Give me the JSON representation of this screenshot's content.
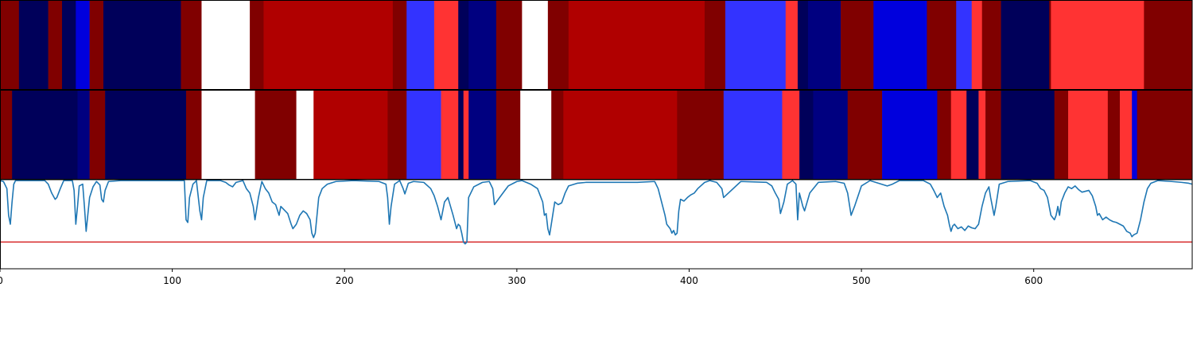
{
  "chart_data": [
    {
      "type": "heatmap",
      "xlim": [
        0,
        692
      ],
      "colors": {
        "N": "#800000",
        "D": "#b00000",
        "R": "#ff3333",
        "W": "#ffffff",
        "L": "#3333ff",
        "B": "#0000dd",
        "K": "#00005a",
        "M": "#000080"
      },
      "segments": [
        [
          0,
          11,
          "N"
        ],
        [
          11,
          28,
          "K"
        ],
        [
          28,
          36,
          "N"
        ],
        [
          36,
          44,
          "K"
        ],
        [
          44,
          52,
          "B"
        ],
        [
          52,
          60,
          "N"
        ],
        [
          60,
          105,
          "K"
        ],
        [
          105,
          117,
          "N"
        ],
        [
          117,
          145,
          "W"
        ],
        [
          145,
          153,
          "N"
        ],
        [
          153,
          228,
          "D"
        ],
        [
          228,
          236,
          "N"
        ],
        [
          236,
          252,
          "L"
        ],
        [
          252,
          266,
          "R"
        ],
        [
          266,
          272,
          "K"
        ],
        [
          272,
          288,
          "M"
        ],
        [
          288,
          303,
          "N"
        ],
        [
          303,
          318,
          "W"
        ],
        [
          318,
          330,
          "N"
        ],
        [
          330,
          409,
          "D"
        ],
        [
          409,
          421,
          "N"
        ],
        [
          421,
          456,
          "L"
        ],
        [
          456,
          463,
          "R"
        ],
        [
          463,
          469,
          "K"
        ],
        [
          469,
          488,
          "M"
        ],
        [
          488,
          507,
          "N"
        ],
        [
          507,
          538,
          "B"
        ],
        [
          538,
          555,
          "N"
        ],
        [
          555,
          564,
          "L"
        ],
        [
          564,
          570,
          "R"
        ],
        [
          570,
          581,
          "N"
        ],
        [
          581,
          609,
          "K"
        ],
        [
          609,
          610,
          "N"
        ],
        [
          610,
          664,
          "R"
        ],
        [
          664,
          692,
          "N"
        ]
      ]
    },
    {
      "type": "heatmap",
      "xlim": [
        0,
        692
      ],
      "colors": {
        "N": "#800000",
        "D": "#b00000",
        "R": "#ff3333",
        "W": "#ffffff",
        "L": "#3333ff",
        "B": "#0000dd",
        "K": "#00005a",
        "M": "#000080"
      },
      "segments": [
        [
          0,
          7,
          "N"
        ],
        [
          7,
          45,
          "K"
        ],
        [
          45,
          52,
          "M"
        ],
        [
          52,
          61,
          "N"
        ],
        [
          61,
          108,
          "K"
        ],
        [
          108,
          117,
          "N"
        ],
        [
          117,
          148,
          "W"
        ],
        [
          148,
          172,
          "N"
        ],
        [
          172,
          182,
          "W"
        ],
        [
          182,
          225,
          "D"
        ],
        [
          225,
          236,
          "N"
        ],
        [
          236,
          256,
          "L"
        ],
        [
          256,
          266,
          "R"
        ],
        [
          266,
          269,
          "K"
        ],
        [
          269,
          272,
          "R"
        ],
        [
          272,
          288,
          "M"
        ],
        [
          288,
          302,
          "N"
        ],
        [
          302,
          320,
          "W"
        ],
        [
          320,
          327,
          "N"
        ],
        [
          327,
          393,
          "D"
        ],
        [
          393,
          420,
          "N"
        ],
        [
          420,
          454,
          "L"
        ],
        [
          454,
          464,
          "R"
        ],
        [
          464,
          472,
          "K"
        ],
        [
          472,
          492,
          "M"
        ],
        [
          492,
          512,
          "N"
        ],
        [
          512,
          544,
          "B"
        ],
        [
          544,
          552,
          "N"
        ],
        [
          552,
          561,
          "R"
        ],
        [
          561,
          568,
          "K"
        ],
        [
          568,
          572,
          "R"
        ],
        [
          572,
          581,
          "N"
        ],
        [
          581,
          612,
          "K"
        ],
        [
          612,
          620,
          "N"
        ],
        [
          620,
          643,
          "R"
        ],
        [
          643,
          650,
          "N"
        ],
        [
          650,
          657,
          "R"
        ],
        [
          657,
          660,
          "B"
        ],
        [
          660,
          692,
          "N"
        ]
      ]
    },
    {
      "type": "line",
      "xlim": [
        0,
        692
      ],
      "ylim": [
        0,
        1
      ],
      "xticks": [
        "0",
        "100",
        "200",
        "300",
        "400",
        "500",
        "600"
      ],
      "threshold": 0.3,
      "colors": {
        "line": "#1f77b4",
        "threshold": "#d62728"
      },
      "points": [
        [
          0,
          0.99
        ],
        [
          2,
          0.98
        ],
        [
          4,
          0.9
        ],
        [
          5,
          0.6
        ],
        [
          6,
          0.5
        ],
        [
          7,
          0.75
        ],
        [
          8,
          0.95
        ],
        [
          9,
          0.99
        ],
        [
          26,
          0.99
        ],
        [
          28,
          0.95
        ],
        [
          30,
          0.85
        ],
        [
          32,
          0.78
        ],
        [
          33,
          0.8
        ],
        [
          35,
          0.9
        ],
        [
          37,
          0.99
        ],
        [
          42,
          0.99
        ],
        [
          43,
          0.88
        ],
        [
          44,
          0.5
        ],
        [
          45,
          0.7
        ],
        [
          46,
          0.93
        ],
        [
          48,
          0.95
        ],
        [
          49,
          0.7
        ],
        [
          50,
          0.42
        ],
        [
          52,
          0.8
        ],
        [
          54,
          0.92
        ],
        [
          56,
          0.98
        ],
        [
          58,
          0.94
        ],
        [
          59,
          0.78
        ],
        [
          60,
          0.75
        ],
        [
          61,
          0.88
        ],
        [
          63,
          0.98
        ],
        [
          70,
          0.99
        ],
        [
          90,
          0.99
        ],
        [
          107,
          0.99
        ],
        [
          108,
          0.55
        ],
        [
          109,
          0.52
        ],
        [
          110,
          0.8
        ],
        [
          112,
          0.95
        ],
        [
          114,
          0.99
        ],
        [
          116,
          0.65
        ],
        [
          117,
          0.55
        ],
        [
          118,
          0.8
        ],
        [
          120,
          0.99
        ],
        [
          128,
          0.99
        ],
        [
          131,
          0.97
        ],
        [
          133,
          0.94
        ],
        [
          135,
          0.92
        ],
        [
          137,
          0.97
        ],
        [
          139,
          0.98
        ],
        [
          141,
          0.99
        ],
        [
          143,
          0.9
        ],
        [
          145,
          0.85
        ],
        [
          147,
          0.7
        ],
        [
          148,
          0.55
        ],
        [
          150,
          0.8
        ],
        [
          152,
          0.98
        ],
        [
          154,
          0.9
        ],
        [
          156,
          0.85
        ],
        [
          158,
          0.75
        ],
        [
          160,
          0.72
        ],
        [
          162,
          0.6
        ],
        [
          163,
          0.7
        ],
        [
          165,
          0.66
        ],
        [
          167,
          0.62
        ],
        [
          169,
          0.5
        ],
        [
          170,
          0.45
        ],
        [
          172,
          0.5
        ],
        [
          174,
          0.6
        ],
        [
          176,
          0.65
        ],
        [
          178,
          0.62
        ],
        [
          180,
          0.55
        ],
        [
          181,
          0.4
        ],
        [
          182,
          0.35
        ],
        [
          183,
          0.4
        ],
        [
          185,
          0.8
        ],
        [
          187,
          0.9
        ],
        [
          190,
          0.95
        ],
        [
          195,
          0.98
        ],
        [
          205,
          0.99
        ],
        [
          220,
          0.98
        ],
        [
          224,
          0.95
        ],
        [
          225,
          0.8
        ],
        [
          226,
          0.5
        ],
        [
          227,
          0.7
        ],
        [
          229,
          0.95
        ],
        [
          232,
          0.99
        ],
        [
          234,
          0.9
        ],
        [
          235,
          0.84
        ],
        [
          237,
          0.96
        ],
        [
          240,
          0.98
        ],
        [
          246,
          0.97
        ],
        [
          250,
          0.9
        ],
        [
          252,
          0.82
        ],
        [
          254,
          0.7
        ],
        [
          256,
          0.55
        ],
        [
          258,
          0.75
        ],
        [
          260,
          0.8
        ],
        [
          263,
          0.6
        ],
        [
          265,
          0.45
        ],
        [
          266,
          0.5
        ],
        [
          267,
          0.48
        ],
        [
          268,
          0.4
        ],
        [
          269,
          0.3
        ],
        [
          270,
          0.28
        ],
        [
          271,
          0.3
        ],
        [
          272,
          0.8
        ],
        [
          275,
          0.92
        ],
        [
          280,
          0.97
        ],
        [
          284,
          0.98
        ],
        [
          286,
          0.9
        ],
        [
          287,
          0.72
        ],
        [
          290,
          0.8
        ],
        [
          295,
          0.93
        ],
        [
          300,
          0.98
        ],
        [
          303,
          0.99
        ],
        [
          308,
          0.95
        ],
        [
          312,
          0.9
        ],
        [
          314,
          0.8
        ],
        [
          315,
          0.75
        ],
        [
          316,
          0.6
        ],
        [
          317,
          0.62
        ],
        [
          318,
          0.45
        ],
        [
          319,
          0.38
        ],
        [
          320,
          0.5
        ],
        [
          322,
          0.75
        ],
        [
          324,
          0.72
        ],
        [
          326,
          0.74
        ],
        [
          328,
          0.85
        ],
        [
          330,
          0.93
        ],
        [
          335,
          0.96
        ],
        [
          340,
          0.97
        ],
        [
          370,
          0.97
        ],
        [
          380,
          0.98
        ],
        [
          382,
          0.9
        ],
        [
          384,
          0.75
        ],
        [
          386,
          0.6
        ],
        [
          387,
          0.5
        ],
        [
          389,
          0.45
        ],
        [
          390,
          0.4
        ],
        [
          391,
          0.43
        ],
        [
          392,
          0.38
        ],
        [
          393,
          0.4
        ],
        [
          394,
          0.65
        ],
        [
          395,
          0.78
        ],
        [
          397,
          0.76
        ],
        [
          399,
          0.8
        ],
        [
          401,
          0.83
        ],
        [
          403,
          0.85
        ],
        [
          405,
          0.9
        ],
        [
          409,
          0.97
        ],
        [
          412,
          0.99
        ],
        [
          416,
          0.97
        ],
        [
          419,
          0.9
        ],
        [
          420,
          0.8
        ],
        [
          430,
          0.98
        ],
        [
          445,
          0.97
        ],
        [
          448,
          0.93
        ],
        [
          450,
          0.85
        ],
        [
          452,
          0.78
        ],
        [
          453,
          0.62
        ],
        [
          455,
          0.75
        ],
        [
          457,
          0.95
        ],
        [
          460,
          0.99
        ],
        [
          462,
          0.95
        ],
        [
          463,
          0.55
        ],
        [
          464,
          0.85
        ],
        [
          466,
          0.7
        ],
        [
          467,
          0.65
        ],
        [
          470,
          0.85
        ],
        [
          475,
          0.97
        ],
        [
          485,
          0.98
        ],
        [
          490,
          0.96
        ],
        [
          492,
          0.85
        ],
        [
          494,
          0.6
        ],
        [
          496,
          0.7
        ],
        [
          500,
          0.93
        ],
        [
          505,
          0.99
        ],
        [
          510,
          0.96
        ],
        [
          515,
          0.93
        ],
        [
          518,
          0.95
        ],
        [
          522,
          0.99
        ],
        [
          536,
          0.99
        ],
        [
          540,
          0.95
        ],
        [
          542,
          0.88
        ],
        [
          544,
          0.8
        ],
        [
          546,
          0.85
        ],
        [
          548,
          0.7
        ],
        [
          550,
          0.6
        ],
        [
          551,
          0.5
        ],
        [
          552,
          0.42
        ],
        [
          553,
          0.48
        ],
        [
          554,
          0.5
        ],
        [
          556,
          0.45
        ],
        [
          558,
          0.47
        ],
        [
          560,
          0.43
        ],
        [
          562,
          0.48
        ],
        [
          564,
          0.46
        ],
        [
          566,
          0.45
        ],
        [
          568,
          0.5
        ],
        [
          570,
          0.7
        ],
        [
          572,
          0.85
        ],
        [
          574,
          0.92
        ],
        [
          575,
          0.8
        ],
        [
          577,
          0.6
        ],
        [
          578,
          0.7
        ],
        [
          580,
          0.95
        ],
        [
          585,
          0.98
        ],
        [
          598,
          0.99
        ],
        [
          602,
          0.96
        ],
        [
          604,
          0.9
        ],
        [
          606,
          0.88
        ],
        [
          608,
          0.8
        ],
        [
          610,
          0.6
        ],
        [
          612,
          0.55
        ],
        [
          613,
          0.6
        ],
        [
          614,
          0.7
        ],
        [
          615,
          0.6
        ],
        [
          616,
          0.75
        ],
        [
          618,
          0.85
        ],
        [
          620,
          0.92
        ],
        [
          622,
          0.9
        ],
        [
          624,
          0.93
        ],
        [
          626,
          0.89
        ],
        [
          628,
          0.86
        ],
        [
          632,
          0.88
        ],
        [
          634,
          0.82
        ],
        [
          636,
          0.7
        ],
        [
          637,
          0.6
        ],
        [
          638,
          0.62
        ],
        [
          640,
          0.55
        ],
        [
          642,
          0.58
        ],
        [
          644,
          0.55
        ],
        [
          646,
          0.53
        ],
        [
          648,
          0.52
        ],
        [
          650,
          0.5
        ],
        [
          652,
          0.48
        ],
        [
          654,
          0.42
        ],
        [
          656,
          0.4
        ],
        [
          657,
          0.36
        ],
        [
          658,
          0.38
        ],
        [
          660,
          0.4
        ],
        [
          662,
          0.55
        ],
        [
          664,
          0.75
        ],
        [
          666,
          0.9
        ],
        [
          668,
          0.96
        ],
        [
          672,
          0.99
        ],
        [
          680,
          0.98
        ],
        [
          686,
          0.97
        ],
        [
          690,
          0.96
        ],
        [
          692,
          0.95
        ]
      ]
    }
  ]
}
